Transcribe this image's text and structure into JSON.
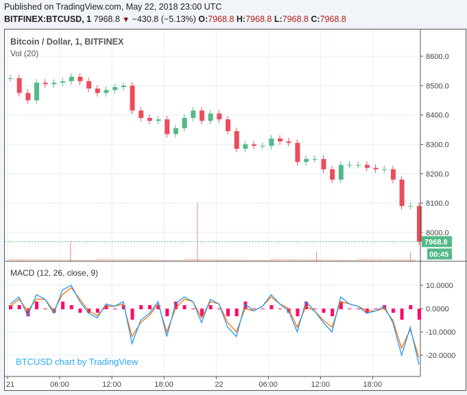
{
  "header": {
    "published": "Published on TradingView.com, May 22, 2018 23:00 UTC",
    "symbol": "BITFINEX:BTCUSD, 1",
    "last": "7968.8",
    "change": "−430.8 (−5.13%)",
    "o_label": "O:",
    "o": "7968.8",
    "h_label": "H:",
    "h": "7968.8",
    "l_label": "L:",
    "l": "7968.8",
    "c_label": "C:",
    "c": "7968.8"
  },
  "legend": {
    "title": "Bitcoin / Dollar, 1, BITFINEX",
    "volume": "Vol (20)",
    "macd": "MACD (12, 26, close, 9)"
  },
  "watermark": "BTCUSD chart by TradingView",
  "price_badge": "7968.8",
  "countdown": "00:45",
  "colors": {
    "up": "#53b987",
    "down": "#eb4d5c",
    "macd": "#2196f3",
    "signal": "#ff6d00",
    "hist": "#ff0a68",
    "badge": "#53b987"
  },
  "chart_data": [
    {
      "type": "candlestick",
      "name": "price",
      "yticks": [
        "8600.0",
        "8500.0",
        "8400.0",
        "8300.0",
        "8200.0",
        "8100.0",
        "8000.0"
      ],
      "ylim": [
        7900,
        8690
      ],
      "xticks": [
        "21",
        "06:00",
        "12:00",
        "18:00",
        "22",
        "06:00",
        "12:00",
        "18:00"
      ],
      "close": [
        8525,
        8475,
        8450,
        8510,
        8505,
        8510,
        8515,
        8530,
        8515,
        8490,
        8475,
        8485,
        8495,
        8500,
        8415,
        8390,
        8380,
        8385,
        8335,
        8355,
        8390,
        8415,
        8380,
        8405,
        8385,
        8345,
        8285,
        8300,
        8295,
        8295,
        8320,
        8310,
        8305,
        8240,
        8250,
        8250,
        8215,
        8180,
        8230,
        8230,
        8230,
        8220,
        8215,
        8215,
        8180,
        8090,
        8090,
        7968.8
      ]
    },
    {
      "type": "bar",
      "name": "volume",
      "spikes": [
        {
          "hour": 7.2,
          "v": 3
        },
        {
          "hour": 21.8,
          "v": 9
        },
        {
          "hour": 35.5,
          "v": 1.5
        },
        {
          "hour": 46.3,
          "v": 1.5
        }
      ]
    },
    {
      "type": "line",
      "name": "macd",
      "yticks": [
        "10.0000",
        "0.0000",
        "-10.0000",
        "-20.0000"
      ],
      "ylim": [
        -28,
        14
      ],
      "macd": [
        2,
        5,
        -3,
        6,
        4,
        -2,
        8,
        10,
        3,
        -2,
        -4,
        2,
        1,
        3,
        -15,
        -5,
        -2,
        3,
        -12,
        2,
        5,
        3,
        -6,
        4,
        2,
        -8,
        -12,
        2,
        -1,
        1,
        6,
        2,
        -1,
        -10,
        3,
        -1,
        -6,
        -10,
        5,
        2,
        1,
        -2,
        -1,
        1,
        -6,
        -20,
        -8,
        -24
      ],
      "signal": [
        1,
        4,
        -1,
        4,
        4,
        -1,
        6,
        9,
        4,
        -1,
        -3,
        1,
        1,
        2,
        -12,
        -6,
        -3,
        2,
        -10,
        0,
        4,
        3,
        -4,
        3,
        2,
        -6,
        -10,
        0,
        -1,
        1,
        5,
        2,
        0,
        -8,
        1,
        -1,
        -5,
        -8,
        3,
        2,
        1,
        -1,
        -1,
        0,
        -5,
        -17,
        -9,
        -21
      ]
    }
  ]
}
